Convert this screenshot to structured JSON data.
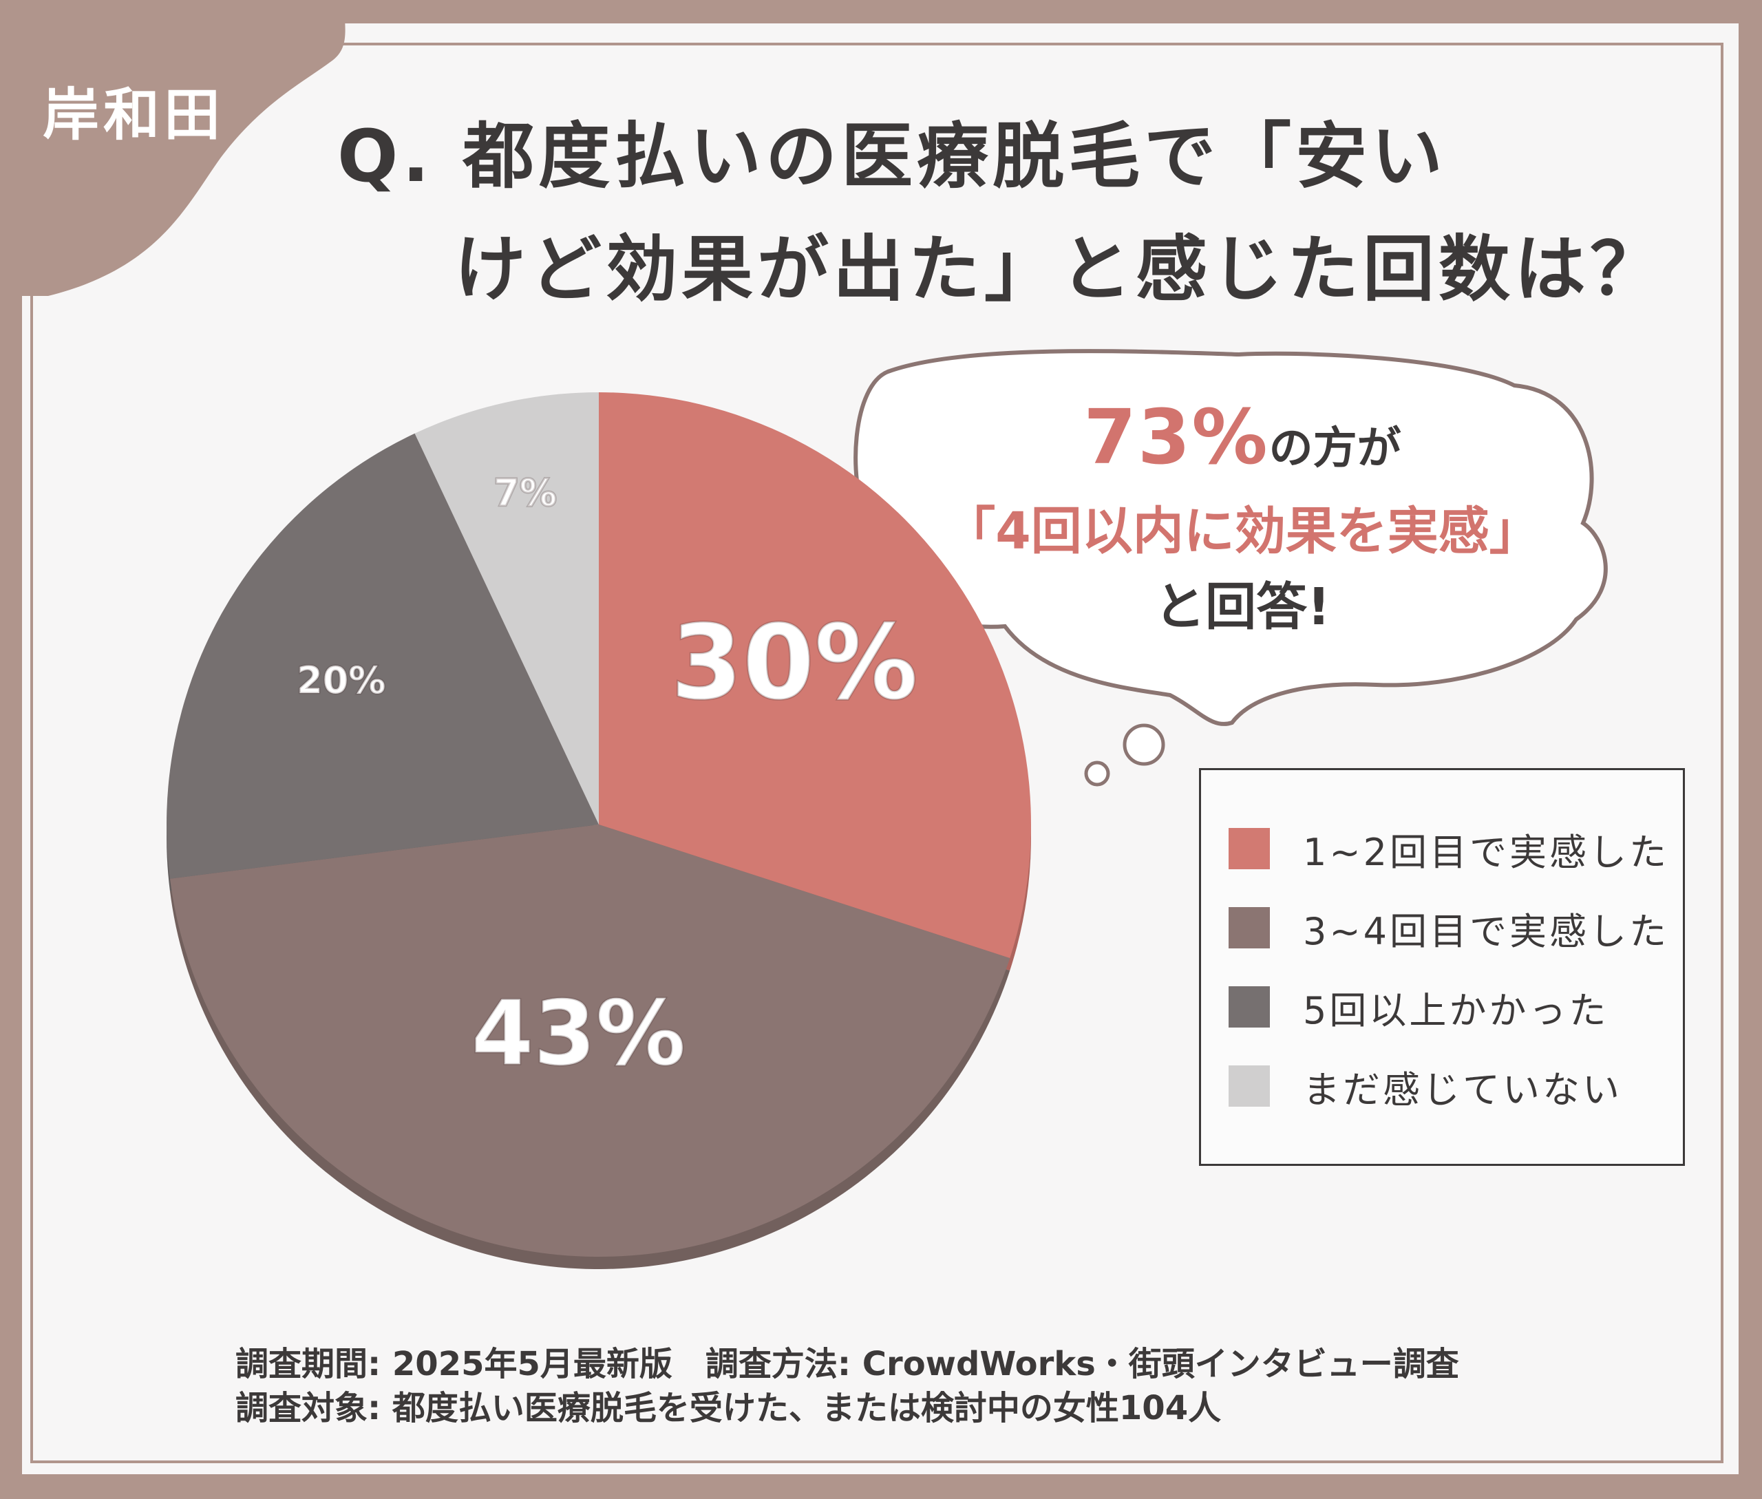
{
  "location": "岸和田",
  "question": {
    "line1": "Q. 都度払いの医療脱毛で「安い",
    "line2": "けど効果が出た」と感じた回数は？"
  },
  "callout": {
    "big": "73%",
    "line1_rest": "の方が",
    "line2": "「4回以内に効果を実感」",
    "line3": "と回答!"
  },
  "chart_data": {
    "type": "pie",
    "slices": [
      {
        "label": "1~2回目で実感した",
        "value": 30,
        "display": "30%",
        "color": "#d27a72"
      },
      {
        "label": "3~4回目で実感した",
        "value": 43,
        "display": "43%",
        "color": "#8b7572"
      },
      {
        "label": "5回以上かかった",
        "value": 20,
        "display": "20%",
        "color": "#767070"
      },
      {
        "label": "まだ感じていない",
        "value": 7,
        "display": "7%",
        "color": "#d0cfcf"
      }
    ],
    "legend_position": "right"
  },
  "footer": {
    "line1": "調査期間: 2025年5月最新版　調査方法: CrowdWorks・街頭インタビュー調査",
    "line2": "調査対象: 都度払い医療脱毛を受けた、または検討中の女性104人"
  }
}
